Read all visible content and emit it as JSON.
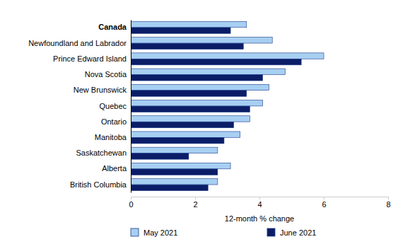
{
  "chart_data": {
    "type": "bar",
    "orientation": "horizontal",
    "x_label": "12-month % change",
    "categories": [
      "Canada",
      "Newfoundland and Labrador",
      "Prince Edward Island",
      "Nova Scotia",
      "New Brunswick",
      "Quebec",
      "Ontario",
      "Manitoba",
      "Saskatchewan",
      "Alberta",
      "British Columbia"
    ],
    "series": [
      {
        "name": "May 2021",
        "color": "#a7cff2",
        "values": [
          3.6,
          4.4,
          6.0,
          4.8,
          4.3,
          4.1,
          3.7,
          3.4,
          2.7,
          3.1,
          2.7
        ]
      },
      {
        "name": "June 2021",
        "color": "#0b1d66",
        "values": [
          3.1,
          3.5,
          5.3,
          4.1,
          3.6,
          3.7,
          3.2,
          2.9,
          1.8,
          2.7,
          2.4
        ]
      }
    ],
    "xlim": [
      0,
      8
    ],
    "xticks": [
      0,
      2,
      4,
      6,
      8
    ],
    "grid": false,
    "legend": "bottom"
  }
}
